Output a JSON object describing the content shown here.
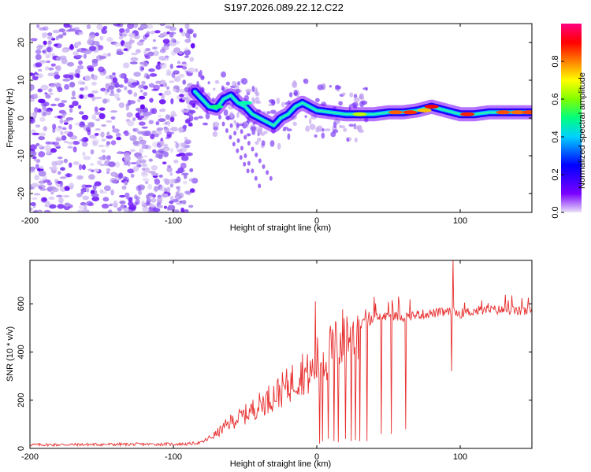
{
  "title": "S197.2026.089.22.12.C22",
  "chart_data": [
    {
      "type": "heatmap",
      "name": "spectrogram",
      "xlabel": "Height of straight line (km)",
      "ylabel": "Frequency (Hz)",
      "xlim": [
        -200,
        150
      ],
      "ylim": [
        -25,
        25
      ],
      "xticks": [
        -200,
        -100,
        0,
        100
      ],
      "xtick_labels": [
        "-200",
        "-100",
        "0",
        "100"
      ],
      "yticks": [
        -20,
        -10,
        0,
        10,
        20
      ],
      "ytick_labels": [
        "-20",
        "-10",
        "0",
        "10",
        "20"
      ],
      "colorbar": {
        "label": "Normalized spectral amplitude",
        "range": [
          0,
          1
        ],
        "ticks": [
          0.0,
          0.2,
          0.4,
          0.6,
          0.8
        ],
        "tick_labels": [
          "0.0",
          "0.2",
          "0.4",
          "0.6",
          "0.8"
        ],
        "stops": [
          "#e8e0f8",
          "#7a00ff",
          "#0000ff",
          "#00d0ff",
          "#00ff80",
          "#80ff00",
          "#ffff00",
          "#ff8000",
          "#ff0000",
          "#ff0080"
        ]
      },
      "noise_region_x": [
        -200,
        -85
      ],
      "signal_ridge": {
        "x": [
          -85,
          -80,
          -75,
          -70,
          -65,
          -60,
          -55,
          -50,
          -45,
          -40,
          -35,
          -30,
          -25,
          -20,
          -15,
          -10,
          -5,
          0,
          10,
          20,
          30,
          40,
          50,
          60,
          70,
          80,
          85,
          90,
          100,
          110,
          120,
          130,
          150
        ],
        "y": [
          7,
          5,
          3,
          2.5,
          5,
          6,
          4,
          3,
          1,
          0,
          -1,
          -2,
          0,
          1,
          3,
          4,
          3,
          2,
          1.5,
          1,
          1,
          1,
          1.5,
          1.5,
          2,
          3,
          2.5,
          2,
          1,
          1,
          1.5,
          1.5,
          1.5
        ]
      }
    },
    {
      "type": "line",
      "name": "snr",
      "xlabel": "Height of straight line (km)",
      "ylabel": "SNR (10 * v/v)",
      "xlim": [
        -200,
        150
      ],
      "ylim": [
        0,
        780
      ],
      "xticks": [
        -200,
        -100,
        0,
        100
      ],
      "xtick_labels": [
        "-200",
        "-100",
        "0",
        "100"
      ],
      "yticks": [
        0,
        200,
        400,
        600
      ],
      "ytick_labels": [
        "0",
        "200",
        "400",
        "600"
      ],
      "color": "#e83030",
      "envelope": {
        "x": [
          -200,
          -90,
          -80,
          -70,
          -60,
          -50,
          -40,
          -30,
          -20,
          -10,
          -5,
          0,
          5,
          10,
          20,
          30,
          40,
          50,
          60,
          70,
          80,
          90,
          95,
          100,
          110,
          120,
          130,
          140,
          150
        ],
        "y": [
          15,
          18,
          25,
          60,
          110,
          140,
          180,
          220,
          260,
          320,
          300,
          360,
          380,
          400,
          470,
          510,
          540,
          550,
          545,
          555,
          560,
          565,
          565,
          560,
          570,
          575,
          575,
          570,
          570
        ]
      },
      "dropouts": [
        {
          "x": -1,
          "y": 610
        },
        {
          "x": 2,
          "y": 20
        },
        {
          "x": 4,
          "y": 30
        },
        {
          "x": 8,
          "y": 40
        },
        {
          "x": 12,
          "y": 30
        },
        {
          "x": 15,
          "y": 25
        },
        {
          "x": 20,
          "y": 40
        },
        {
          "x": 24,
          "y": 30
        },
        {
          "x": 27,
          "y": 35
        },
        {
          "x": 30,
          "y": 30
        },
        {
          "x": 35,
          "y": 30
        },
        {
          "x": 45,
          "y": 60
        },
        {
          "x": 52,
          "y": 60
        },
        {
          "x": 62,
          "y": 80
        },
        {
          "x": 94,
          "y": 320
        },
        {
          "x": 95,
          "y": 780
        }
      ]
    }
  ]
}
